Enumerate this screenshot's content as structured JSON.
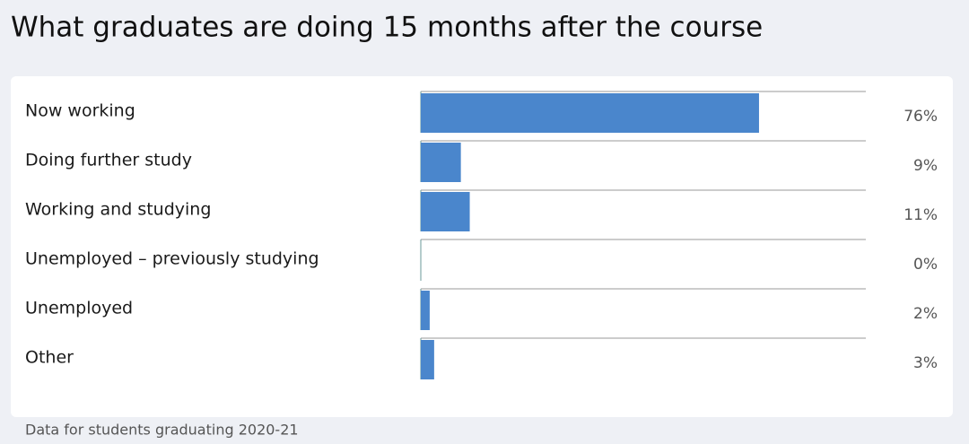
{
  "chart_data": {
    "type": "bar",
    "orientation": "horizontal",
    "title": "What graduates are doing 15 months after the course",
    "categories": [
      "Now working",
      "Doing further study",
      "Working and studying",
      "Unemployed – previously studying",
      "Unemployed",
      "Other"
    ],
    "values": [
      76,
      9,
      11,
      0,
      2,
      3
    ],
    "value_labels": [
      "76%",
      "9%",
      "11%",
      "0%",
      "2%",
      "3%"
    ],
    "color": "#4a86cc",
    "xlim": [
      0,
      100
    ],
    "footnote": "Data for students graduating 2020-21"
  }
}
